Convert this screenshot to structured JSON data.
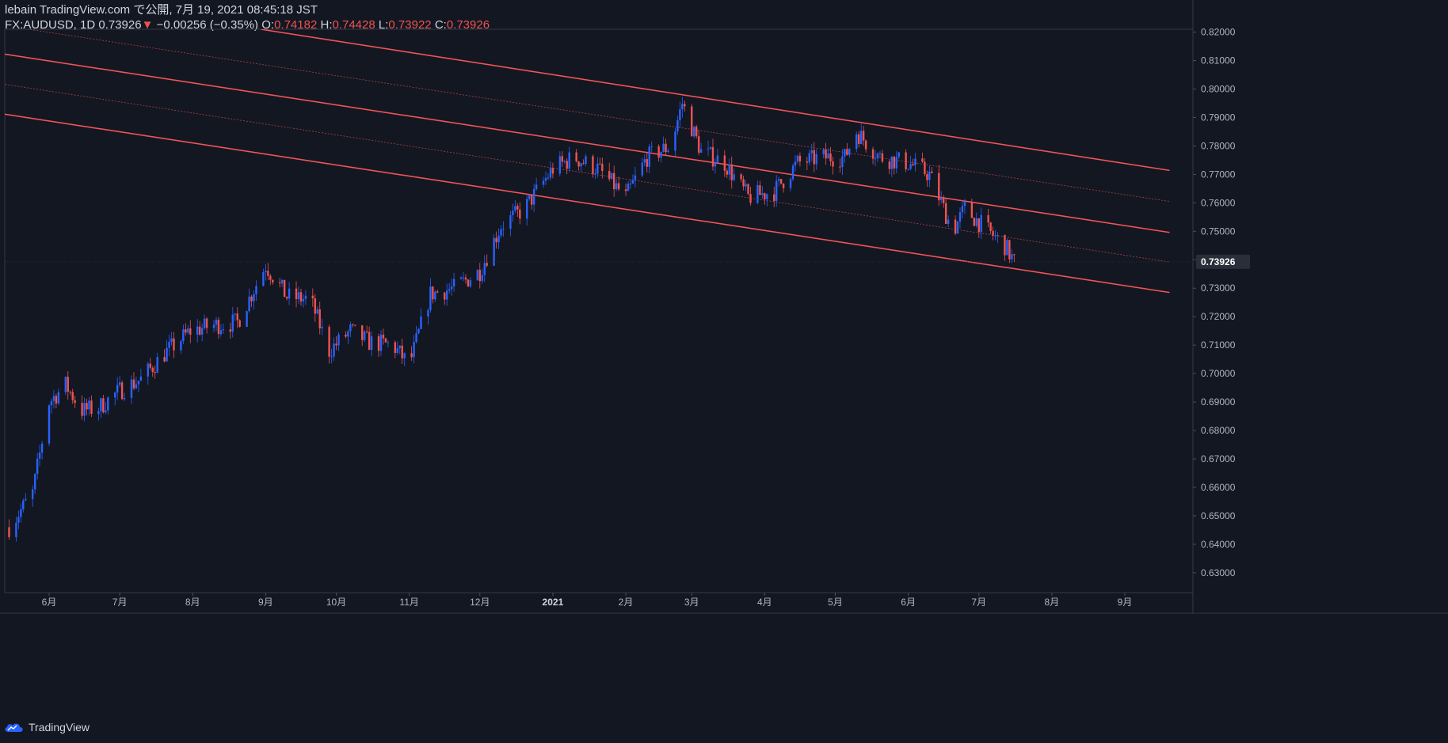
{
  "header": {
    "line1": "lebain TradingView.com で公開, 7月 19, 2021 08:45:18 JST",
    "symbol": "FX:AUDUSD, 1D",
    "last": "0.73926",
    "arrow": "▼",
    "change": "−0.00256 (−0.35%)",
    "o_label": "O:",
    "o_value": "0.74182",
    "h_label": "H:",
    "h_value": "0.74428",
    "l_label": "L:",
    "l_value": "0.73922",
    "c_label": "C:",
    "c_value": "0.73926"
  },
  "footer": {
    "brand": "TradingView",
    "logo_icon": "tradingview-cloud-icon"
  },
  "colors": {
    "background": "#131722",
    "up": "#2962ff",
    "down": "#ef5350",
    "channel": "#f05454",
    "text": "#b2b5be"
  },
  "chart_data": {
    "type": "candlestick",
    "symbol": "FX:AUDUSD",
    "timeframe": "1D",
    "ylim": [
      0.623,
      0.821
    ],
    "y_ticks": [
      "0.82000",
      "0.81000",
      "0.80000",
      "0.79000",
      "0.78000",
      "0.77000",
      "0.76000",
      "0.75000",
      "0.74000",
      "0.73000",
      "0.72000",
      "0.71000",
      "0.70000",
      "0.69000",
      "0.68000",
      "0.67000",
      "0.66000",
      "0.65000",
      "0.64000",
      "0.63000"
    ],
    "y_tick_values": [
      0.82,
      0.81,
      0.8,
      0.79,
      0.78,
      0.77,
      0.76,
      0.75,
      0.74,
      0.73,
      0.72,
      0.71,
      0.7,
      0.69,
      0.68,
      0.67,
      0.66,
      0.65,
      0.64,
      0.63
    ],
    "x_ticks": [
      {
        "label": "6月",
        "date": "2020-06-01"
      },
      {
        "label": "7月",
        "date": "2020-07-01"
      },
      {
        "label": "8月",
        "date": "2020-08-01"
      },
      {
        "label": "9月",
        "date": "2020-09-01"
      },
      {
        "label": "10月",
        "date": "2020-10-01"
      },
      {
        "label": "11月",
        "date": "2020-11-01"
      },
      {
        "label": "12月",
        "date": "2020-12-01"
      },
      {
        "label": "2021",
        "date": "2021-01-01",
        "bold": true
      },
      {
        "label": "2月",
        "date": "2021-02-01"
      },
      {
        "label": "3月",
        "date": "2021-03-01"
      },
      {
        "label": "4月",
        "date": "2021-04-01"
      },
      {
        "label": "5月",
        "date": "2021-05-01"
      },
      {
        "label": "6月",
        "date": "2021-06-01"
      },
      {
        "label": "7月",
        "date": "2021-07-01"
      },
      {
        "label": "8月",
        "date": "2021-08-01"
      },
      {
        "label": "9月",
        "date": "2021-09-01"
      }
    ],
    "last_price": {
      "value": 0.73926,
      "label": "0.73926"
    },
    "closes": [
      {
        "date": "2020-05-15",
        "close": 0.646
      },
      {
        "date": "2020-05-25",
        "close": 0.658
      },
      {
        "date": "2020-06-01",
        "close": 0.69
      },
      {
        "date": "2020-06-08",
        "close": 0.696
      },
      {
        "date": "2020-06-15",
        "close": 0.687
      },
      {
        "date": "2020-06-22",
        "close": 0.688
      },
      {
        "date": "2020-07-01",
        "close": 0.694
      },
      {
        "date": "2020-07-10",
        "close": 0.698
      },
      {
        "date": "2020-07-20",
        "close": 0.707
      },
      {
        "date": "2020-07-31",
        "close": 0.715
      },
      {
        "date": "2020-08-10",
        "close": 0.717
      },
      {
        "date": "2020-08-20",
        "close": 0.718
      },
      {
        "date": "2020-09-01",
        "close": 0.738
      },
      {
        "date": "2020-09-10",
        "close": 0.727
      },
      {
        "date": "2020-09-20",
        "close": 0.726
      },
      {
        "date": "2020-09-28",
        "close": 0.708
      },
      {
        "date": "2020-10-07",
        "close": 0.715
      },
      {
        "date": "2020-10-15",
        "close": 0.711
      },
      {
        "date": "2020-10-25",
        "close": 0.71
      },
      {
        "date": "2020-11-01",
        "close": 0.703
      },
      {
        "date": "2020-11-10",
        "close": 0.728
      },
      {
        "date": "2020-11-20",
        "close": 0.73
      },
      {
        "date": "2020-12-01",
        "close": 0.736
      },
      {
        "date": "2020-12-10",
        "close": 0.752
      },
      {
        "date": "2020-12-20",
        "close": 0.758
      },
      {
        "date": "2021-01-01",
        "close": 0.772
      },
      {
        "date": "2021-01-10",
        "close": 0.776
      },
      {
        "date": "2021-01-20",
        "close": 0.772
      },
      {
        "date": "2021-02-01",
        "close": 0.762
      },
      {
        "date": "2021-02-10",
        "close": 0.776
      },
      {
        "date": "2021-02-20",
        "close": 0.78
      },
      {
        "date": "2021-02-25",
        "close": 0.795
      },
      {
        "date": "2021-03-05",
        "close": 0.778
      },
      {
        "date": "2021-03-15",
        "close": 0.774
      },
      {
        "date": "2021-03-25",
        "close": 0.762
      },
      {
        "date": "2021-04-05",
        "close": 0.764
      },
      {
        "date": "2021-04-15",
        "close": 0.774
      },
      {
        "date": "2021-04-25",
        "close": 0.776
      },
      {
        "date": "2021-05-05",
        "close": 0.776
      },
      {
        "date": "2021-05-10",
        "close": 0.785
      },
      {
        "date": "2021-05-20",
        "close": 0.776
      },
      {
        "date": "2021-06-01",
        "close": 0.774
      },
      {
        "date": "2021-06-10",
        "close": 0.77
      },
      {
        "date": "2021-06-20",
        "close": 0.75
      },
      {
        "date": "2021-06-25",
        "close": 0.758
      },
      {
        "date": "2021-07-05",
        "close": 0.75
      },
      {
        "date": "2021-07-12",
        "close": 0.745
      },
      {
        "date": "2021-07-16",
        "close": 0.7393
      }
    ]
  }
}
